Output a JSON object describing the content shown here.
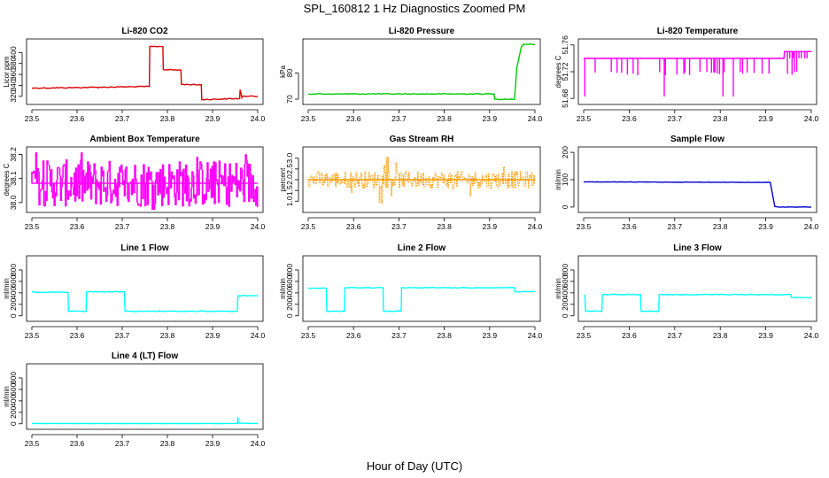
{
  "figure": {
    "title": "SPL_160812  1 Hz Diagnostics Zoomed PM",
    "xlabel": "Hour of Day (UTC)"
  },
  "chart_data": [
    {
      "type": "line",
      "title": "Li-820 CO2",
      "ylabel": "Licor ppm",
      "color": "#dd0000",
      "xlim": [
        23.5,
        24.0
      ],
      "ylim": [
        310,
        420
      ],
      "xticks": [
        "23.5",
        "23.6",
        "23.7",
        "23.8",
        "23.9",
        "24.0"
      ],
      "yticks": [
        320,
        340,
        360,
        380,
        400
      ],
      "x": [
        23.5,
        23.6,
        23.76,
        23.761,
        23.79,
        23.791,
        23.83,
        23.831,
        23.875,
        23.876,
        23.96,
        23.961,
        23.965,
        23.966,
        24.0
      ],
      "y": [
        335,
        336,
        338,
        411,
        411,
        369,
        368,
        342,
        341,
        314,
        316,
        332,
        318,
        320,
        320
      ]
    },
    {
      "type": "line",
      "title": "Li-820 Pressure",
      "ylabel": "kPa",
      "color": "#00cc00",
      "xlim": [
        23.5,
        24.0
      ],
      "ylim": [
        69,
        92
      ],
      "xticks": [
        "23.5",
        "23.6",
        "23.7",
        "23.8",
        "23.9",
        "24.0"
      ],
      "yticks": [
        70,
        80
      ],
      "x": [
        23.5,
        23.91,
        23.911,
        23.955,
        23.96,
        23.965,
        23.97,
        23.975,
        24.0
      ],
      "y": [
        72,
        72,
        70,
        70,
        82,
        86,
        90,
        91,
        91
      ]
    },
    {
      "type": "line",
      "title": "Li-820 Temperature",
      "ylabel": "degrees C",
      "color": "#ff00ff",
      "xlim": [
        23.5,
        24.0
      ],
      "ylim": [
        51.675,
        51.765
      ],
      "xticks": [
        "23.5",
        "23.6",
        "23.7",
        "23.8",
        "23.9",
        "24.0"
      ],
      "yticks": [
        "51.68",
        "51.72",
        "51.76"
      ],
      "x": [
        23.5,
        23.94,
        23.941,
        24.0
      ],
      "y": [
        51.74,
        51.74,
        51.75,
        51.75
      ]
    },
    {
      "type": "line",
      "title": "Ambient Box Temperature",
      "ylabel": "degrees C",
      "color": "#ff00ff",
      "xlim": [
        23.5,
        24.0
      ],
      "ylim": [
        37.97,
        38.22
      ],
      "xticks": [
        "23.5",
        "23.6",
        "23.7",
        "23.8",
        "23.9",
        "24.0"
      ],
      "yticks": [
        "38.0",
        "38.1",
        "38.2"
      ],
      "x": [
        23.5,
        24.0
      ],
      "y": [
        38.08,
        38.08
      ]
    },
    {
      "type": "line",
      "title": "Gas Stream RH",
      "ylabel": "percent",
      "color": "#ff9900",
      "xlim": [
        23.5,
        24.0
      ],
      "ylim": [
        0.6,
        3.4
      ],
      "xticks": [
        "23.5",
        "23.6",
        "23.7",
        "23.8",
        "23.9",
        "24.0"
      ],
      "yticks": [
        "1.0",
        "1.5",
        "2.0",
        "2.5",
        "3.0"
      ],
      "x": [
        23.5,
        24.0
      ],
      "y": [
        2.0,
        2.0
      ]
    },
    {
      "type": "line",
      "title": "Sample Flow",
      "ylabel": "ml/min",
      "color": "#0000cc",
      "xlim": [
        23.5,
        24.0
      ],
      "ylim": [
        -10,
        210
      ],
      "xticks": [
        "23.5",
        "23.6",
        "23.7",
        "23.8",
        "23.9",
        "24.0"
      ],
      "yticks": [
        0,
        100,
        200
      ],
      "x": [
        23.5,
        23.91,
        23.92,
        23.93,
        24.0
      ],
      "y": [
        92,
        90,
        2,
        0,
        0
      ]
    },
    {
      "type": "line",
      "title": "Line 1 Flow",
      "ylabel": "ml/min",
      "color": "#00ffff",
      "xlim": [
        23.5,
        24.0
      ],
      "ylim": [
        -50,
        1000
      ],
      "xticks": [
        "23.5",
        "23.6",
        "23.7",
        "23.8",
        "23.9",
        "24.0"
      ],
      "yticks": [
        0,
        200,
        400,
        600,
        800
      ],
      "x": [
        23.5,
        23.503,
        23.504,
        23.58,
        23.581,
        23.62,
        23.621,
        23.705,
        23.706,
        23.955,
        23.956,
        24.0
      ],
      "y": [
        420,
        420,
        410,
        410,
        80,
        80,
        420,
        420,
        80,
        80,
        350,
        350
      ]
    },
    {
      "type": "line",
      "title": "Line 2 Flow",
      "ylabel": "ml/min",
      "color": "#00ffff",
      "xlim": [
        23.5,
        24.0
      ],
      "ylim": [
        -50,
        1000
      ],
      "xticks": [
        "23.5",
        "23.6",
        "23.7",
        "23.8",
        "23.9",
        "24.0"
      ],
      "yticks": [
        0,
        200,
        400,
        600,
        800
      ],
      "x": [
        23.5,
        23.54,
        23.541,
        23.58,
        23.581,
        23.665,
        23.666,
        23.705,
        23.706,
        23.955,
        23.956,
        24.0
      ],
      "y": [
        480,
        480,
        80,
        80,
        490,
        490,
        80,
        80,
        490,
        490,
        420,
        420
      ]
    },
    {
      "type": "line",
      "title": "Line 3 Flow",
      "ylabel": "ml/min",
      "color": "#00ffff",
      "xlim": [
        23.5,
        24.0
      ],
      "ylim": [
        -50,
        1000
      ],
      "xticks": [
        "23.5",
        "23.6",
        "23.7",
        "23.8",
        "23.9",
        "24.0"
      ],
      "yticks": [
        0,
        200,
        400,
        600,
        800
      ],
      "x": [
        23.5,
        23.503,
        23.504,
        23.54,
        23.541,
        23.625,
        23.626,
        23.665,
        23.666,
        23.955,
        23.956,
        24.0
      ],
      "y": [
        350,
        350,
        80,
        80,
        370,
        370,
        80,
        80,
        370,
        370,
        320,
        320
      ]
    },
    {
      "type": "line",
      "title": "Line 4 (LT) Flow",
      "ylabel": "ml/min",
      "color": "#00ffff",
      "xlim": [
        23.5,
        24.0
      ],
      "ylim": [
        -50,
        1000
      ],
      "xticks": [
        "23.5",
        "23.6",
        "23.7",
        "23.8",
        "23.9",
        "24.0"
      ],
      "yticks": [
        0,
        200,
        400,
        600,
        800
      ],
      "x": [
        23.5,
        23.955,
        23.956,
        23.957,
        24.0
      ],
      "y": [
        5,
        5,
        120,
        10,
        5
      ]
    }
  ]
}
